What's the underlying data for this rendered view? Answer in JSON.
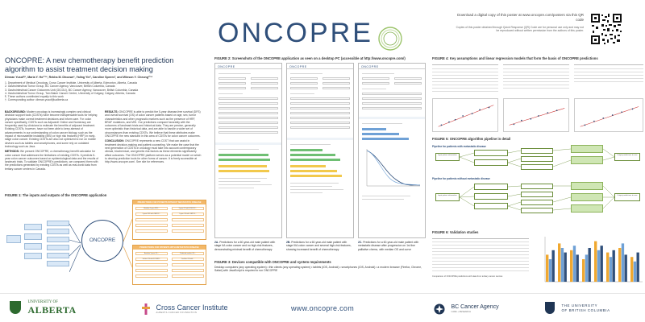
{
  "header": {
    "logo": "ONCOPRE",
    "download_text": "Download a digital copy of this poster at www.oncopre.com/posters via this QR code",
    "copy_notice": "Copies of this poster obtained through Quick Response (QR) Code are for personal use only and may not be reproduced without written permission from the authors of this poster."
  },
  "title": "ONCOPRE: A new chemotherapy benefit prediction algorithm to assist treatment decision making",
  "authors": "Dirman Yusof¹ʲ³, Maria Y. Ho¹²³⁴, Rekha M. Dhoowe¹, Yaling Yin², Caroline Speers², and Winson Y. Cheung¹²³⁴",
  "affiliations": [
    "1. Department of Medical Oncology, Cross Cancer Institute, University of Alberta, Edmonton, Alberta, Canada",
    "2. Gastrointestinal Tumor Group, BC Cancer Agency, Vancouver, British Columbia, Canada",
    "3. Gastrointestinal Cancer Outcomes Unit (GICOU), BC Cancer Agency, Vancouver, British Columbia, Canada",
    "4. Gastrointestinal Tumor Group, Tom Baker Cancer Centre, University of Calgary, Calgary, Alberta, Canada",
    "¶. These authors contributed equally to this work",
    "†. Corresponding author: dirman.yusof@ualberta.ca"
  ],
  "sections": {
    "background_label": "BACKGROUND:",
    "background": "Modern oncology is increasingly complex and clinical decision support tools (CDSTs) have become indispensable tools for helping physicians make correct treatment decisions and inform care. For colon cancer specifically, CDSTs such as Adjuvant! Online and Numeracy are frequently used by clinicians to estimate the benefits of adjuvant treatment. Existing CDSTs, however, have not been able to keep abreast of advancements in our understanding of colon cancer biology, such as the impact of microsatellite instability (MSI) or high risk features (HRF) in early-stage colon cancer. Existing CDSTs are also not optimized to run on mobile devices such as tablets and smartphones, and some rely on outdated technology such as Java.",
    "methods_label": "METHODS:",
    "methods": "We present ONCOPRE, a chemotherapy benefit calculator for colon cancer that addresses the limitations of existing CDSTs. It predicts 5-year colon cancer outcomes based on epidemiological data and the results of landmark trials. To validate ONCOPRE's predictions, we compared them with the predictions generated by existing CDSTs as well as real-world data from tertiary cancer centers in Canada.",
    "results_label": "RESULTS:",
    "results": "ONCOPRE is able to predict the 5-year disease-free survival (DFS) and overall survival (OS) of colon cancer patients based on age, sex, tumor characteristics and other prognostic markers such as the presence of HRF, BRAF mutations, and MSI. Our predictions compare favorably with the outcomes of landmark trials and historical data. They are precise, generally more optimistic than historical data, and are able to handle a wider set of circumstances than existing CDSTs. We believe that these attributes make ONCOPRE the new standard in this area of CDSTs for colon cancer outcomes.",
    "conclusion_label": "CONCLUSION:",
    "conclusion": "ONCOPRE represents a new CDST that can assist in treatment decision-making and patient counseling. We make the case that the next generation of CDSTs in oncology must take into account contemporary clinical, biochemical, and genetic risk factors as these elements significantly affect outcomes. The ONCOPRE platform serves as a potential model on which to develop prediction tools for other forms of cancer. It is freely accessible at http://www.oncopre.com/. See site for references."
  },
  "figure1": {
    "title": "FIGURE 1: The inputs and outputs of the ONCOPRE application",
    "center": "ONCOPRE",
    "outputs_top": "PREDICTIONS FOR PATIENTS WITHOUT METASTATIC DISEASE",
    "outputs_bottom": "PREDICTIONS FOR PATIENTS WITH METASTATIC DISEASE",
    "output_items": [
      "Baseline 5-year DFS…",
      "5-year OS with FOLFOX…",
      "5-year DFS with CAPOX…",
      "5-year OS with CAPOX…",
      "Baseline 5-year OS…",
      "Predicted median OS…",
      "1st-line OS with FOLFIRI…",
      "2nd-line OS with…"
    ]
  },
  "figure2": {
    "title": "FIGURE 2: Screenshots of the ONCOPRE application as seen on a desktop PC (accessible at http://www.oncopre.com/)",
    "screen_logo": "ONCOPRE",
    "captions": [
      {
        "label": "2A.",
        "text": "Predictions for a 60-year-old male patient with stage IIA colon cancer and no high-risk features, demonstrating minimal benefit of chemotherapy"
      },
      {
        "label": "2B.",
        "text": "Predictions for a 60-year-old male patient with stage IIIA colon cancer and several high-risk features, showing increased benefit of chemotherapy"
      },
      {
        "label": "2C.",
        "text": "Predictions for a 60-year-old male patient with metastatic disease after progression on 1st line palliative chemo, with median OS and curve"
      }
    ]
  },
  "figure3": {
    "title": "FIGURE 3: Devices compatible with ONCOPRE and system requirements",
    "text": "Desktop computers (any operating system) • thin clients (any operating system) • tablets (iOS, Android) • smartphones (iOS, Android) • a modern browser (Firefox, Chrome, Safari) with JavaScript is required to run ONCOPRE"
  },
  "figure4": {
    "title": "FIGURE 4: Key assumptions and linear regression models that form the basis of ONCOPRE predictions"
  },
  "figure5": {
    "title": "FIGURE 5: ONCOPRE algorithm pipeline in detail",
    "head1": "Pipeline for patients with metastatic disease",
    "head2": "Pipeline for patients without metastatic disease",
    "box_input": "Input patient information",
    "box_output": "Output predictions to user"
  },
  "figure6": {
    "title": "FIGURE 6: Validation studies",
    "note": "Comparison of ONCOPRE predictions with data from tertiary cancer centres"
  },
  "chart_data": {
    "type": "bar",
    "series": [
      {
        "name": "",
        "values": [
          0.6,
          0.85,
          0.7,
          0.5,
          0.9,
          0.65,
          0.75,
          0.55
        ]
      },
      {
        "name": "",
        "values": [
          0.5,
          0.75,
          0.8,
          0.6,
          0.7,
          0.55,
          0.85,
          0.45
        ]
      },
      {
        "name": "",
        "values": [
          0.7,
          0.65,
          0.6,
          0.75,
          0.8,
          0.7,
          0.6,
          0.65
        ]
      }
    ],
    "colors": [
      "#f0a830",
      "#6fa1d6",
      "#2f4f7a"
    ],
    "ylim": [
      0,
      1
    ]
  },
  "footer": {
    "ua_top": "UNIVERSITY OF",
    "ua_bottom": "ALBERTA",
    "cci_name": "Cross Cancer Institute",
    "cci_sub": "ALBERTA CANCER FOUNDATION",
    "url": "www.oncopre.com",
    "bcca_name": "BC Cancer Agency",
    "bcca_sub": "CARE + RESEARCH",
    "ubc_line1": "THE UNIVERSITY",
    "ubc_line2": "OF BRITISH COLUMBIA"
  }
}
